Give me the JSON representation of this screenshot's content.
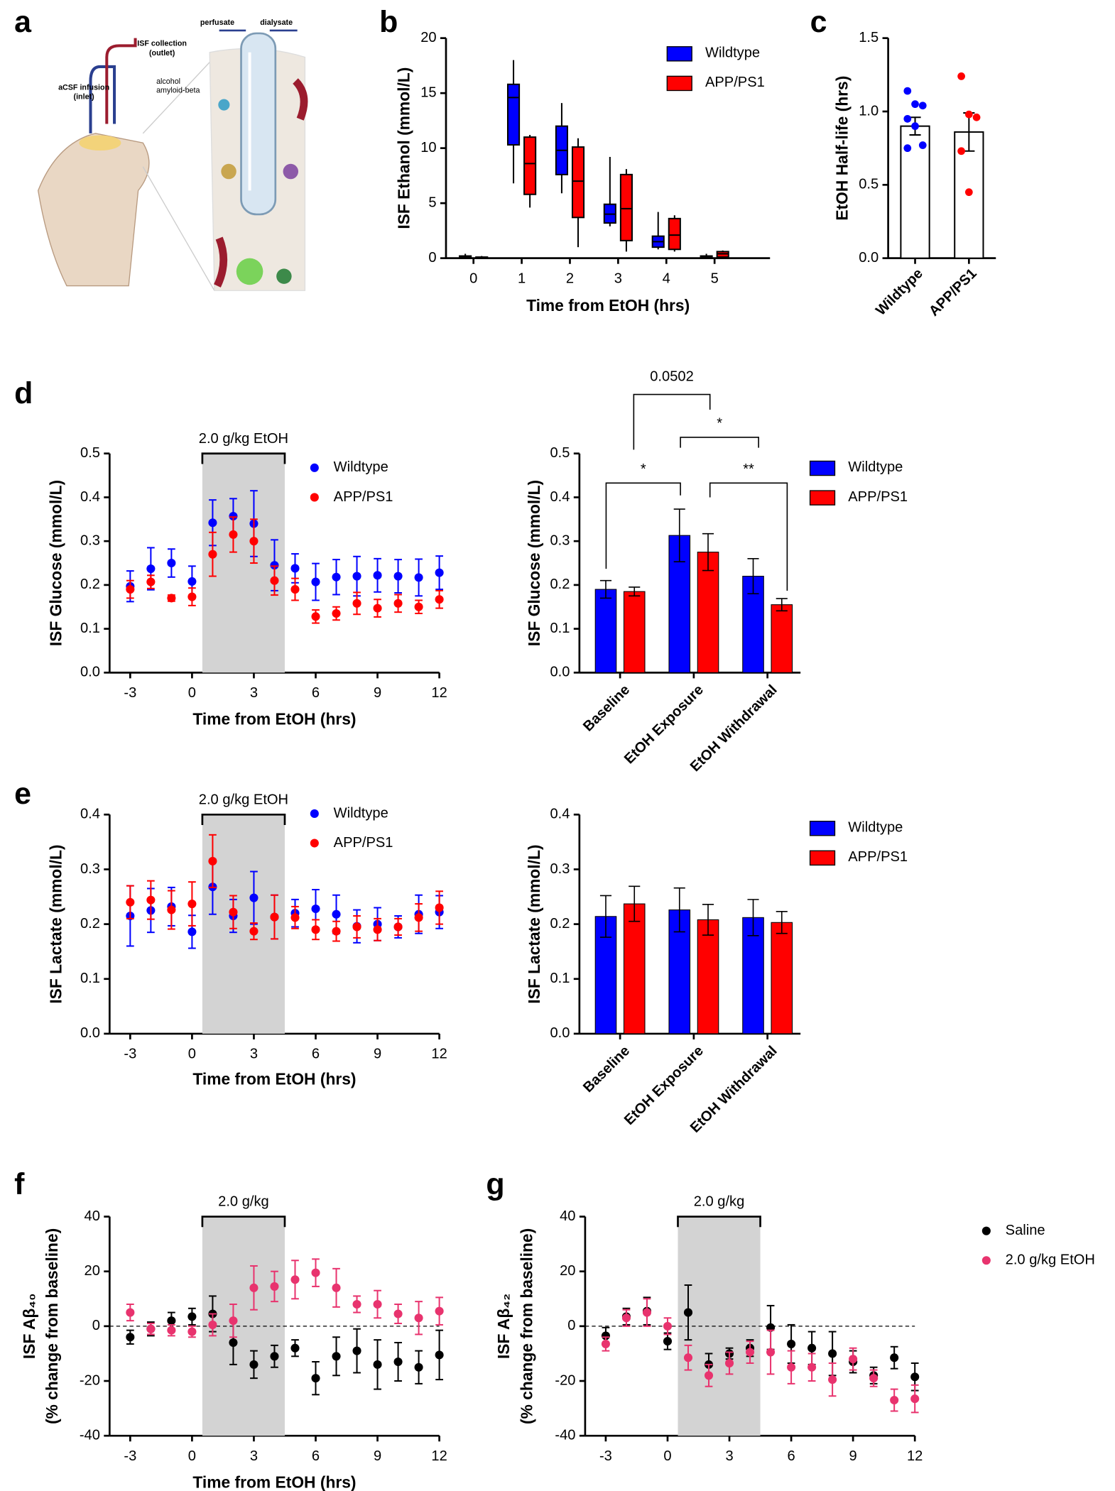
{
  "panel_labels": [
    "a",
    "b",
    "c",
    "d",
    "e",
    "f",
    "g"
  ],
  "illustration": {
    "labels": [
      "perfusate",
      "dialysate",
      "ISF collection",
      "(outlet)",
      "alcohol",
      "amyloid-beta",
      "aCSF infusion",
      "(inlet)"
    ]
  },
  "chart_data": [
    {
      "type": "box",
      "ylabel": "ISF Ethanol (mmol/L)",
      "xlabel": "Time from EtOH (hrs)",
      "x": [
        0,
        1,
        2,
        3,
        4,
        5
      ],
      "xlim": [
        -0.57,
        6.15
      ],
      "xticks": [
        0,
        1,
        2,
        3,
        4,
        5
      ],
      "ylim": [
        0,
        20
      ],
      "yticks": [
        0,
        5,
        10,
        15,
        20
      ],
      "series": [
        {
          "name": "Wildtype",
          "color": "#0000ff",
          "boxes": [
            [
              0,
              0,
              0.1,
              0.2,
              0.4
            ],
            [
              6.8,
              10.3,
              14.6,
              15.8,
              18
            ],
            [
              5.9,
              7.6,
              9.8,
              12,
              14.1
            ],
            [
              2.9,
              3.2,
              4,
              4.9,
              9.2
            ],
            [
              0.8,
              1,
              1.5,
              2,
              4.2
            ],
            [
              0,
              0,
              0.1,
              0.2,
              0.4
            ]
          ]
        },
        {
          "name": "APP/PS1",
          "color": "#ff0000",
          "boxes": [
            [
              0,
              0,
              0.05,
              0.1,
              0.2
            ],
            [
              4.6,
              5.8,
              8.6,
              11,
              11.2
            ],
            [
              1,
              3.7,
              7,
              10.1,
              10.9
            ],
            [
              0.6,
              1.6,
              4.5,
              7.6,
              8.1
            ],
            [
              0.6,
              0.8,
              2.1,
              3.6,
              3.9
            ],
            [
              0,
              0.1,
              0.4,
              0.6,
              0.7
            ]
          ]
        }
      ]
    },
    {
      "type": "bar_points",
      "ylabel": "EtOH Half-life (hrs)",
      "categories": [
        "Wildtype",
        "APP/PS1"
      ],
      "values": [
        0.9,
        0.86
      ],
      "errors": [
        0.06,
        0.13
      ],
      "colors": [
        "#0000ff",
        "#ff0000"
      ],
      "points": [
        [
          1.14,
          1.05,
          1.04,
          0.95,
          0.9,
          0.77,
          0.75
        ],
        [
          1.24,
          0.98,
          0.96,
          0.73,
          0.45
        ]
      ],
      "ylim": [
        0,
        1.5
      ],
      "yticks": [
        {
          "value": 0,
          "label": "0.0"
        },
        {
          "value": 0.5,
          "label": "0.5"
        },
        {
          "value": 1,
          "label": "1.0"
        },
        {
          "value": 1.5,
          "label": "1.5"
        }
      ]
    },
    {
      "type": "errorbar_scatter",
      "ylabel": "ISF Glucose (mmol/L)",
      "xlabel": "Time from EtOH (hrs)",
      "shaded_range": [
        0.5,
        4.5
      ],
      "shade_label": "2.0 g/kg EtOH",
      "x": [
        -3,
        -2,
        -1,
        0,
        1,
        2,
        3,
        4,
        5,
        6,
        7,
        8,
        9,
        10,
        11,
        12
      ],
      "xlim": [
        -4,
        12
      ],
      "xticks": [
        -3,
        0,
        3,
        6,
        9,
        12
      ],
      "ylim": [
        0,
        0.5
      ],
      "yticks": [
        {
          "value": 0,
          "label": "0.0"
        },
        {
          "value": 0.1,
          "label": "0.1"
        },
        {
          "value": 0.2,
          "label": "0.2"
        },
        {
          "value": 0.3,
          "label": "0.3"
        },
        {
          "value": 0.4,
          "label": "0.4"
        },
        {
          "value": 0.5,
          "label": "0.5"
        }
      ],
      "series": [
        {
          "name": "Wildtype",
          "color": "#0000ff",
          "values": [
            0.197,
            0.237,
            0.25,
            0.208,
            0.342,
            0.357,
            0.34,
            0.245,
            0.238,
            0.207,
            0.218,
            0.22,
            0.222,
            0.22,
            0.217,
            0.228
          ],
          "errors": [
            0.035,
            0.048,
            0.032,
            0.035,
            0.052,
            0.04,
            0.075,
            0.058,
            0.033,
            0.042,
            0.04,
            0.045,
            0.038,
            0.038,
            0.042,
            0.038
          ]
        },
        {
          "name": "APP/PS1",
          "color": "#ff0000",
          "values": [
            0.19,
            0.207,
            0.17,
            0.173,
            0.27,
            0.315,
            0.3,
            0.21,
            0.19,
            0.128,
            0.135,
            0.158,
            0.147,
            0.158,
            0.15,
            0.167
          ],
          "errors": [
            0.02,
            0.015,
            0.007,
            0.02,
            0.05,
            0.04,
            0.05,
            0.033,
            0.025,
            0.015,
            0.015,
            0.025,
            0.02,
            0.02,
            0.015,
            0.02
          ]
        }
      ]
    },
    {
      "type": "grouped_bar",
      "ylabel": "ISF Glucose (mmol/L)",
      "categories": [
        "Baseline",
        "EtOH Exposure",
        "EtOH Withdrawal"
      ],
      "ylim": [
        0,
        0.5
      ],
      "yticks": [
        {
          "value": 0,
          "label": "0.0"
        },
        {
          "value": 0.1,
          "label": "0.1"
        },
        {
          "value": 0.2,
          "label": "0.2"
        },
        {
          "value": 0.3,
          "label": "0.3"
        },
        {
          "value": 0.4,
          "label": "0.4"
        },
        {
          "value": 0.5,
          "label": "0.5"
        }
      ],
      "annotations": [
        "0.0502",
        "*",
        "*",
        "**"
      ],
      "series": [
        {
          "name": "Wildtype",
          "color": "#0000ff",
          "values": [
            0.19,
            0.313,
            0.22
          ],
          "errors": [
            0.02,
            0.06,
            0.04
          ]
        },
        {
          "name": "APP/PS1",
          "color": "#ff0000",
          "values": [
            0.185,
            0.275,
            0.155
          ],
          "errors": [
            0.01,
            0.042,
            0.014
          ]
        }
      ]
    },
    {
      "type": "errorbar_scatter",
      "ylabel": "ISF Lactate (mmol/L)",
      "xlabel": "Time from EtOH (hrs)",
      "shaded_range": [
        0.5,
        4.5
      ],
      "shade_label": "2.0 g/kg EtOH",
      "x": [
        -3,
        -2,
        -1,
        0,
        1,
        2,
        3,
        4,
        5,
        6,
        7,
        8,
        9,
        10,
        11,
        12
      ],
      "xlim": [
        -4,
        12
      ],
      "xticks": [
        -3,
        0,
        3,
        6,
        9,
        12
      ],
      "ylim": [
        0,
        0.4
      ],
      "yticks": [
        {
          "value": 0,
          "label": "0.0"
        },
        {
          "value": 0.1,
          "label": "0.1"
        },
        {
          "value": 0.2,
          "label": "0.2"
        },
        {
          "value": 0.3,
          "label": "0.3"
        },
        {
          "value": 0.4,
          "label": "0.4"
        }
      ],
      "series": [
        {
          "name": "Wildtype",
          "color": "#0000ff",
          "values": [
            0.215,
            0.225,
            0.232,
            0.186,
            0.268,
            0.215,
            0.248,
            0.213,
            0.22,
            0.228,
            0.218,
            0.196,
            0.2,
            0.195,
            0.218,
            0.222
          ],
          "errors": [
            0.055,
            0.04,
            0.035,
            0.03,
            0.05,
            0.03,
            0.048,
            0.04,
            0.025,
            0.035,
            0.035,
            0.03,
            0.03,
            0.02,
            0.035,
            0.03
          ]
        },
        {
          "name": "APP/PS1",
          "color": "#ff0000",
          "values": [
            0.24,
            0.244,
            0.226,
            0.237,
            0.315,
            0.222,
            0.187,
            0.213,
            0.212,
            0.19,
            0.187,
            0.195,
            0.19,
            0.195,
            0.212,
            0.23
          ],
          "errors": [
            0.03,
            0.035,
            0.035,
            0.04,
            0.048,
            0.03,
            0.015,
            0.04,
            0.02,
            0.018,
            0.018,
            0.02,
            0.02,
            0.015,
            0.025,
            0.03
          ]
        }
      ]
    },
    {
      "type": "grouped_bar",
      "ylabel": "ISF Lactate (mmol/L)",
      "categories": [
        "Baseline",
        "EtOH Exposure",
        "EtOH Withdrawal"
      ],
      "ylim": [
        0,
        0.4
      ],
      "yticks": [
        {
          "value": 0,
          "label": "0.0"
        },
        {
          "value": 0.1,
          "label": "0.1"
        },
        {
          "value": 0.2,
          "label": "0.2"
        },
        {
          "value": 0.3,
          "label": "0.3"
        },
        {
          "value": 0.4,
          "label": "0.4"
        }
      ],
      "series": [
        {
          "name": "Wildtype",
          "color": "#0000ff",
          "values": [
            0.214,
            0.226,
            0.212
          ],
          "errors": [
            0.038,
            0.04,
            0.033
          ]
        },
        {
          "name": "APP/PS1",
          "color": "#ff0000",
          "values": [
            0.237,
            0.208,
            0.203
          ],
          "errors": [
            0.032,
            0.028,
            0.02
          ]
        }
      ]
    },
    {
      "type": "errorbar_scatter",
      "ylabel": "ISF Aβ₄₀",
      "ylabel2": "(% change from baseline)",
      "xlabel": "Time from EtOH (hrs)",
      "shaded_range": [
        0.5,
        4.5
      ],
      "shade_label": "2.0 g/kg",
      "reference_line": 0,
      "x": [
        -3,
        -2,
        -1,
        0,
        1,
        2,
        3,
        4,
        5,
        6,
        7,
        8,
        9,
        10,
        11,
        12
      ],
      "xlim": [
        -4,
        12
      ],
      "xticks": [
        -3,
        0,
        3,
        6,
        9,
        12
      ],
      "ylim": [
        -40,
        40
      ],
      "yticks": [
        -40,
        -20,
        0,
        20,
        40
      ],
      "series": [
        {
          "color": "#000000",
          "values": [
            -4,
            -1,
            2,
            3.5,
            4.5,
            -6,
            -14,
            -11,
            -8,
            -19,
            -11,
            -9,
            -14,
            -13,
            -15,
            -10.5
          ],
          "errors": [
            2.5,
            2.5,
            3,
            3,
            6.5,
            8,
            5,
            4,
            3,
            6,
            7,
            8,
            9,
            7,
            6,
            9
          ]
        },
        {
          "color": "#e8336e",
          "values": [
            5,
            -1,
            -1.5,
            -2,
            0.5,
            2,
            14,
            14.5,
            17,
            19.5,
            14,
            8,
            8,
            4.5,
            3,
            5.5
          ],
          "errors": [
            3,
            2,
            2,
            2,
            4,
            6,
            8,
            5.5,
            7,
            5,
            7,
            3,
            5,
            3.5,
            6,
            5
          ]
        }
      ]
    },
    {
      "type": "errorbar_scatter",
      "ylabel": "ISF Aβ₄₂",
      "ylabel2": "(% change from baseline)",
      "shaded_range": [
        0.5,
        4.5
      ],
      "shade_label": "2.0 g/kg",
      "reference_line": 0,
      "x": [
        -3,
        -2,
        -1,
        0,
        1,
        2,
        3,
        4,
        5,
        6,
        7,
        8,
        9,
        10,
        11,
        12
      ],
      "xlim": [
        -4,
        12
      ],
      "xticks": [
        -3,
        0,
        3,
        6,
        9,
        12
      ],
      "ylim": [
        -40,
        40
      ],
      "yticks": [
        -40,
        -20,
        0,
        20,
        40
      ],
      "series": [
        {
          "name": "Saline",
          "color": "#000000",
          "values": [
            -3.5,
            3.5,
            5.5,
            -5.5,
            5,
            -14,
            -10,
            -8,
            -0.5,
            -6.5,
            -8,
            -10,
            -13,
            -18,
            -11.5,
            -18.5
          ],
          "errors": [
            3,
            3,
            5,
            3,
            10,
            4,
            2,
            3,
            8,
            7,
            6,
            8,
            4,
            3,
            4,
            5
          ]
        },
        {
          "name": "2.0 g/kg EtOH",
          "color": "#e8336e",
          "values": [
            -6.5,
            3,
            5,
            0,
            -11.5,
            -18,
            -13.5,
            -9.5,
            -9.5,
            -15,
            -15,
            -19.5,
            -12,
            -19,
            -27,
            -26.5
          ],
          "errors": [
            2.5,
            3,
            5,
            3,
            4.5,
            4,
            4,
            4,
            8,
            6,
            5,
            6,
            4,
            3,
            4,
            5
          ]
        }
      ]
    }
  ]
}
